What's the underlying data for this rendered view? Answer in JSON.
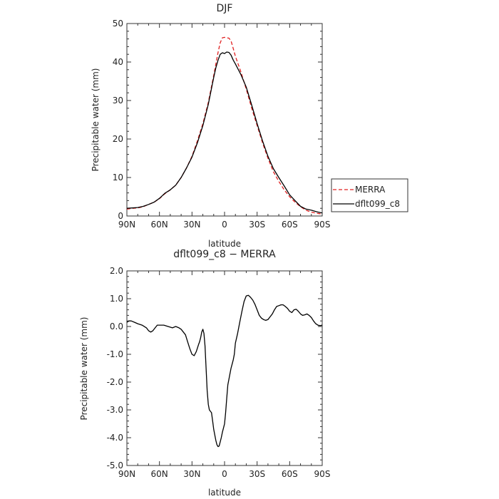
{
  "chart_data": [
    {
      "type": "line",
      "title": "DJF",
      "xlabel": "latitude",
      "ylabel": "Precipitable water (mm)",
      "xlim": [
        90,
        -90
      ],
      "ylim": [
        0,
        50
      ],
      "x_ticks": [
        90,
        60,
        30,
        0,
        -30,
        -60,
        -90
      ],
      "x_tick_labels": [
        "90N",
        "60N",
        "30N",
        "0",
        "30S",
        "60S",
        "90S"
      ],
      "y_ticks": [
        0,
        10,
        20,
        30,
        40,
        50
      ],
      "y_tick_labels": [
        "0",
        "10",
        "20",
        "30",
        "40",
        "50"
      ],
      "legend": {
        "placement": "right",
        "entries": [
          "MERRA",
          "dflt099_c8"
        ]
      },
      "series": [
        {
          "name": "MERRA",
          "color": "#e02020",
          "dash": "dashed",
          "x": [
            90,
            85,
            80,
            75,
            70,
            65,
            60,
            55,
            50,
            45,
            40,
            35,
            30,
            25,
            20,
            15,
            10,
            8,
            6,
            4,
            2,
            0,
            -2,
            -4,
            -6,
            -8,
            -10,
            -15,
            -20,
            -25,
            -30,
            -35,
            -40,
            -45,
            -50,
            -55,
            -60,
            -65,
            -70,
            -75,
            -80,
            -85,
            -90
          ],
          "y": [
            1.8,
            2.0,
            2.1,
            2.4,
            3.0,
            3.6,
            4.5,
            5.8,
            6.8,
            8.0,
            10.0,
            12.5,
            15.5,
            19.5,
            24.0,
            29.5,
            36.5,
            39.5,
            42.5,
            45.0,
            46.3,
            46.4,
            46.3,
            46.2,
            45.5,
            43.5,
            41.5,
            37.5,
            33.0,
            28.0,
            23.5,
            19.0,
            15.0,
            11.5,
            9.0,
            6.8,
            5.0,
            3.6,
            2.4,
            1.5,
            1.0,
            0.7,
            0.5
          ]
        },
        {
          "name": "dflt099_c8",
          "color": "#000000",
          "dash": "solid",
          "x": [
            90,
            85,
            80,
            75,
            70,
            65,
            60,
            55,
            50,
            45,
            40,
            35,
            30,
            25,
            20,
            15,
            10,
            8,
            6,
            4,
            2,
            0,
            -2,
            -4,
            -6,
            -8,
            -10,
            -15,
            -20,
            -25,
            -30,
            -35,
            -40,
            -45,
            -50,
            -55,
            -60,
            -65,
            -70,
            -75,
            -80,
            -85,
            -90
          ],
          "y": [
            2.0,
            2.1,
            2.2,
            2.5,
            3.0,
            3.6,
            4.6,
            5.9,
            6.8,
            8.0,
            10.0,
            12.5,
            15.3,
            19.0,
            23.5,
            29.0,
            36.0,
            38.5,
            40.5,
            42.0,
            42.4,
            42.2,
            42.6,
            42.5,
            41.8,
            40.5,
            39.5,
            36.8,
            33.5,
            28.8,
            24.0,
            19.5,
            15.5,
            12.3,
            10.0,
            7.8,
            5.5,
            4.0,
            2.5,
            1.8,
            1.5,
            1.1,
            0.8
          ]
        }
      ]
    },
    {
      "type": "line",
      "title": "dflt099_c8 − MERRA",
      "xlabel": "latitude",
      "ylabel": "Precipitable water (mm)",
      "xlim": [
        90,
        -90
      ],
      "ylim": [
        -5.0,
        2.0
      ],
      "x_ticks": [
        90,
        60,
        30,
        0,
        -30,
        -60,
        -90
      ],
      "x_tick_labels": [
        "90N",
        "60N",
        "30N",
        "0",
        "30S",
        "60S",
        "90S"
      ],
      "y_ticks": [
        2,
        1,
        0,
        -1,
        -2,
        -3,
        -4,
        -5
      ],
      "y_tick_labels": [
        "2.0",
        "1.0",
        "0.0",
        "-1.0",
        "-2.0",
        "-3.0",
        "-4.0",
        "-5.0"
      ],
      "series": [
        {
          "color": "#000000",
          "dash": "solid",
          "x": [
            90,
            88,
            86,
            83,
            80,
            76,
            72,
            70,
            68,
            66,
            64,
            62,
            60,
            56,
            52,
            48,
            45,
            42,
            40,
            38,
            36,
            34,
            32,
            30,
            28,
            26,
            24,
            23,
            22,
            21,
            20,
            19,
            18,
            17,
            16,
            15,
            14,
            13,
            12,
            11,
            10,
            9,
            8,
            7,
            6,
            5,
            4,
            3,
            2,
            1,
            0,
            -1,
            -2,
            -3,
            -4,
            -5,
            -6,
            -7,
            -8,
            -9,
            -10,
            -12,
            -14,
            -16,
            -18,
            -20,
            -22,
            -24,
            -26,
            -28,
            -30,
            -32,
            -34,
            -36,
            -38,
            -40,
            -42,
            -44,
            -46,
            -48,
            -50,
            -52,
            -54,
            -56,
            -58,
            -60,
            -62,
            -64,
            -66,
            -68,
            -70,
            -72,
            -74,
            -76,
            -78,
            -80,
            -82,
            -84,
            -86,
            -88,
            -90
          ],
          "y": [
            0.15,
            0.2,
            0.2,
            0.15,
            0.1,
            0.05,
            -0.05,
            -0.15,
            -0.2,
            -0.15,
            -0.05,
            0.05,
            0.05,
            0.05,
            0.0,
            -0.05,
            0.0,
            -0.05,
            -0.1,
            -0.2,
            -0.3,
            -0.55,
            -0.8,
            -1.0,
            -1.05,
            -0.9,
            -0.65,
            -0.55,
            -0.4,
            -0.2,
            -0.1,
            -0.25,
            -0.7,
            -1.5,
            -2.3,
            -2.8,
            -3.0,
            -3.05,
            -3.1,
            -3.4,
            -3.7,
            -3.9,
            -4.1,
            -4.25,
            -4.32,
            -4.3,
            -4.15,
            -4.0,
            -3.8,
            -3.65,
            -3.5,
            -3.1,
            -2.6,
            -2.1,
            -1.9,
            -1.7,
            -1.5,
            -1.35,
            -1.2,
            -1.0,
            -0.6,
            -0.25,
            0.15,
            0.55,
            0.9,
            1.1,
            1.12,
            1.05,
            0.95,
            0.8,
            0.6,
            0.4,
            0.3,
            0.25,
            0.22,
            0.25,
            0.35,
            0.45,
            0.6,
            0.72,
            0.75,
            0.78,
            0.78,
            0.72,
            0.65,
            0.55,
            0.5,
            0.6,
            0.62,
            0.55,
            0.45,
            0.4,
            0.42,
            0.45,
            0.4,
            0.32,
            0.2,
            0.1,
            0.05,
            0.03,
            0.05
          ]
        }
      ]
    }
  ]
}
